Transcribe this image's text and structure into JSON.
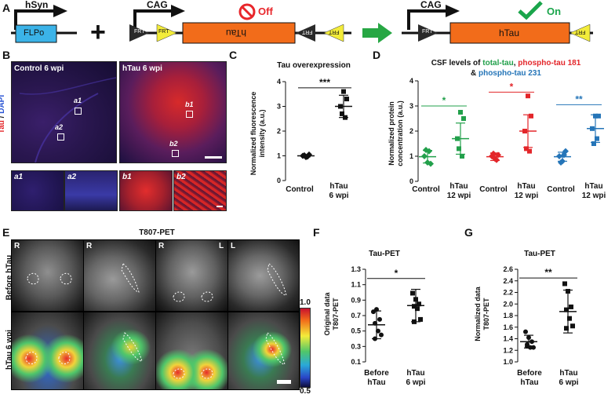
{
  "panel_a": {
    "label": "A",
    "promoters": {
      "p1": "hSyn",
      "p2": "CAG",
      "p3": "CAG"
    },
    "genes": {
      "flpo": "FLPo",
      "htau_inverted": "hTau",
      "htau": "hTau"
    },
    "sites": {
      "frt": "FRT"
    },
    "plus": "+",
    "off": "Off",
    "on": "On",
    "colors": {
      "flpo": "#3bb3e8",
      "htau": "#f26c1a",
      "frt": "#f3ec3a",
      "off": "#e8262b",
      "on": "#1aa54b",
      "arrow": "#27a744"
    }
  },
  "panel_b": {
    "label": "B",
    "stain_tau": "Tau",
    "stain_sep": " / ",
    "stain_dapi": "DAPI",
    "control_title": "Control 6 wpi",
    "htau_title": "hTau 6 wpi",
    "roi": {
      "a1": "a1",
      "a2": "a2",
      "b1": "b1",
      "b2": "b2"
    }
  },
  "panel_c": {
    "label": "C",
    "title": "Tau overexpression",
    "ylabel1": "Normalized fluorescence",
    "ylabel2": "intensity (a.u.)",
    "sig": "***",
    "cat1": "Control",
    "cat2a": "hTau",
    "cat2b": "6 wpi"
  },
  "panel_d": {
    "label": "D",
    "title_l1_a": "CSF levels of ",
    "title_l1_b": "total-tau",
    "title_l1_c": ", ",
    "title_l1_d": "phospho-tau 181",
    "title_l2_a": "& ",
    "title_l2_b": "phospho-tau 231",
    "ylabel1": "Normalized protein",
    "ylabel2": "concentration (a.u.)",
    "sig1": "*",
    "sig2": "*",
    "sig3": "**",
    "control": "Control",
    "htau": "hTau",
    "wpi": "12 wpi",
    "colors": {
      "total": "#22a04b",
      "p181": "#e3262a",
      "p231": "#2575b8"
    }
  },
  "panel_e": {
    "label": "E",
    "title": "T807-PET",
    "row1": "Before hTau",
    "row2": "hTau 6 wpi",
    "r": "R",
    "l": "L",
    "cbar_max": "1.0",
    "cbar_min": "0.5"
  },
  "panel_f": {
    "label": "F",
    "title": "Tau-PET",
    "ylabel1": "Original data",
    "ylabel2": "T807-PET",
    "sig": "*",
    "cat1a": "Before",
    "cat1b": "hTau",
    "cat2a": "hTau",
    "cat2b": "6 wpi"
  },
  "panel_g": {
    "label": "G",
    "title": "Tau-PET",
    "ylabel1": "Normalized data",
    "ylabel2": "T807-PET",
    "sig": "**",
    "cat1a": "Before",
    "cat1b": "hTau",
    "cat2a": "hTau",
    "cat2b": "6 wpi"
  },
  "chart_data": [
    {
      "type": "scatter",
      "panel": "C",
      "title": "Tau overexpression",
      "ylabel": "Normalized fluorescence intensity (a.u.)",
      "categories": [
        "Control",
        "hTau 6 wpi"
      ],
      "ylim": [
        0,
        4
      ],
      "yticks": [
        0,
        1,
        2,
        3,
        4
      ],
      "points": [
        [
          1.0,
          0.95,
          1.05,
          1.02,
          0.97
        ],
        [
          3.0,
          3.6,
          3.3,
          2.7,
          2.55
        ]
      ],
      "means": [
        1.0,
        3.0
      ],
      "sd": [
        0.04,
        0.45
      ],
      "significance": "***"
    },
    {
      "type": "scatter",
      "panel": "D",
      "ylabel": "Normalized protein concentration (a.u.)",
      "ylim": [
        0,
        4
      ],
      "yticks": [
        0,
        1,
        2,
        3,
        4
      ],
      "series": [
        {
          "name": "total-tau",
          "control": [
            1.0,
            0.75,
            0.7,
            1.25,
            1.2
          ],
          "htau": [
            1.7,
            2.75,
            2.5,
            1.3,
            1.0
          ],
          "means": [
            0.98,
            1.7
          ],
          "sd": [
            0.25,
            0.62
          ],
          "significance": "*"
        },
        {
          "name": "phospho-tau 181",
          "control": [
            1.0,
            0.9,
            1.05,
            1.1,
            0.85
          ],
          "htau": [
            2.0,
            3.4,
            2.6,
            1.3,
            1.2
          ],
          "means": [
            0.98,
            2.0
          ],
          "sd": [
            0.15,
            0.65
          ],
          "significance": "*"
        },
        {
          "name": "phospho-tau 231",
          "control": [
            1.0,
            0.8,
            1.2,
            0.75,
            1.05
          ],
          "htau": [
            2.1,
            2.6,
            2.6,
            1.5,
            1.7
          ],
          "means": [
            0.98,
            2.1
          ],
          "sd": [
            0.18,
            0.55
          ],
          "significance": "**"
        }
      ]
    },
    {
      "type": "scatter",
      "panel": "F",
      "title": "Tau-PET",
      "ylabel": "Original data T807-PET",
      "categories": [
        "Before hTau",
        "hTau 6 wpi"
      ],
      "ylim": [
        0.1,
        1.3
      ],
      "yticks": [
        0.1,
        0.3,
        0.5,
        0.7,
        0.9,
        1.1,
        1.3
      ],
      "points": [
        [
          0.75,
          0.78,
          0.65,
          0.6,
          0.5,
          0.45,
          0.4
        ],
        [
          0.99,
          0.91,
          0.85,
          0.82,
          0.79,
          0.65,
          0.62
        ]
      ],
      "means": [
        0.58,
        0.83
      ],
      "sd": [
        0.18,
        0.21
      ],
      "significance": "*"
    },
    {
      "type": "scatter",
      "panel": "G",
      "title": "Tau-PET",
      "ylabel": "Normalized data T807-PET",
      "categories": [
        "Before hTau",
        "hTau 6 wpi"
      ],
      "ylim": [
        1.0,
        2.6
      ],
      "yticks": [
        1.0,
        1.2,
        1.4,
        1.6,
        1.8,
        2.0,
        2.2,
        2.4,
        2.6
      ],
      "points": [
        [
          1.52,
          1.42,
          1.35,
          1.3,
          1.25,
          1.25,
          1.27
        ],
        [
          2.35,
          2.22,
          1.95,
          1.9,
          1.75,
          1.62,
          1.58
        ]
      ],
      "means": [
        1.35,
        1.87
      ],
      "sd": [
        0.11,
        0.37
      ],
      "significance": "**"
    }
  ]
}
